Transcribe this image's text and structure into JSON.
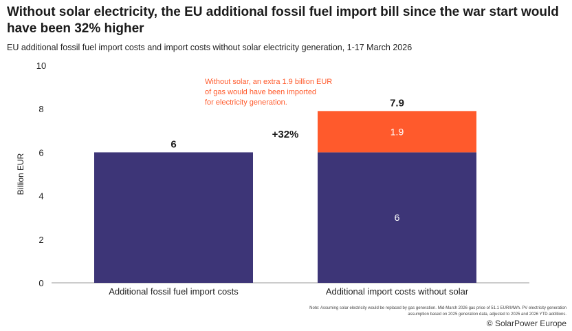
{
  "title": "Without solar electricity, the EU additional fossil fuel import bill since the war start would have been 32% higher",
  "subtitle": "EU additional fossil fuel import costs and import costs without solar electricity generation, 1-17 March 2026",
  "note": "Note: Assuming solar electricity would be replaced by gas generation. Mid-March 2026 gas price of 51.1 EUR/MWh. PV electricity generation assumption based on 2025 generation data, adjusted to 2025 and 2026 YTD additions.",
  "brand": "© SolarPower Europe",
  "chart_data": {
    "type": "bar",
    "stacked": true,
    "categories": [
      "Additional fossil fuel import costs",
      "Additional import costs without solar"
    ],
    "series": [
      {
        "values": [
          6,
          6
        ],
        "labels": [
          "",
          "6"
        ],
        "color": "#3d3577"
      },
      {
        "values": [
          0,
          1.9
        ],
        "labels": [
          "",
          "1.9"
        ],
        "color": "#ff5a2c"
      }
    ],
    "totals": [
      "6",
      "7.9"
    ],
    "ylabel": "Billion EUR",
    "ylim": [
      0,
      10
    ],
    "yticks": [
      "0",
      "2",
      "4",
      "6",
      "8",
      "10"
    ],
    "grid": false,
    "annotations": {
      "change": "+32%",
      "callout": [
        "Without solar, an extra 1.9 billion EUR",
        "of gas would have been imported",
        "for electricity generation."
      ],
      "callout_color": "#ff5a2c"
    }
  }
}
